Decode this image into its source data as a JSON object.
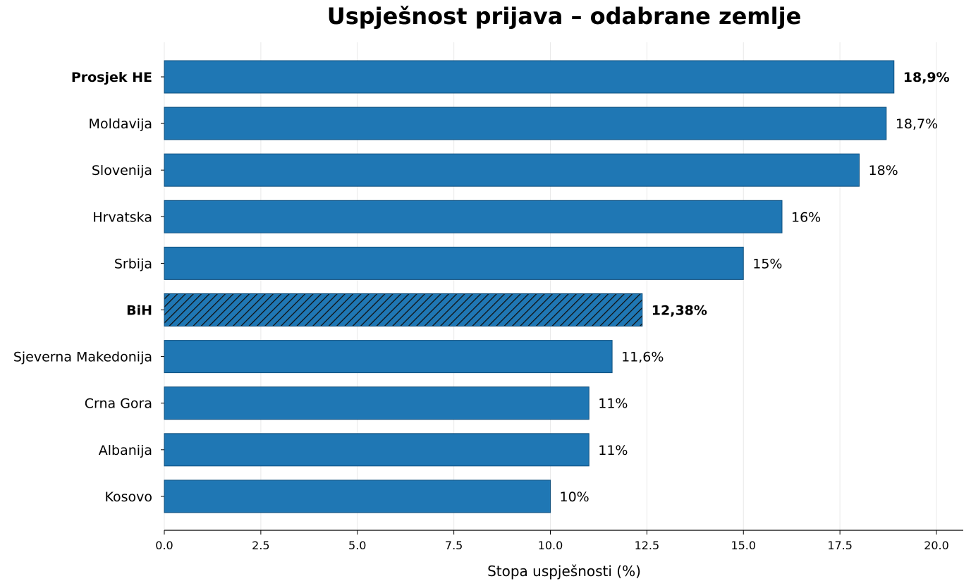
{
  "chart_data": {
    "type": "bar",
    "orientation": "horizontal",
    "title": "Uspješnost prijava – odabrane zemlje",
    "xlabel": "Stopa uspješnosti (%)",
    "ylabel": "",
    "xlim": [
      0,
      20.7
    ],
    "xticks": [
      "0.0",
      "2.5",
      "5.0",
      "7.5",
      "10.0",
      "12.5",
      "15.0",
      "17.5",
      "20.0"
    ],
    "grid": "vertical",
    "bar_color": "#1f77b4",
    "highlight_pattern": "hatched",
    "categories": [
      {
        "label": "Prosjek HE",
        "value": 18.9,
        "value_label": "18,9%",
        "bold": true,
        "hatched": false
      },
      {
        "label": "Moldavija",
        "value": 18.7,
        "value_label": "18,7%",
        "bold": false,
        "hatched": false
      },
      {
        "label": "Slovenija",
        "value": 18,
        "value_label": "18%",
        "bold": false,
        "hatched": false
      },
      {
        "label": "Hrvatska",
        "value": 16,
        "value_label": "16%",
        "bold": false,
        "hatched": false
      },
      {
        "label": "Srbija",
        "value": 15,
        "value_label": "15%",
        "bold": false,
        "hatched": false
      },
      {
        "label": "BiH",
        "value": 12.38,
        "value_label": "12,38%",
        "bold": true,
        "hatched": true
      },
      {
        "label": "Sjeverna Makedonija",
        "value": 11.6,
        "value_label": "11,6%",
        "bold": false,
        "hatched": false
      },
      {
        "label": "Crna Gora",
        "value": 11,
        "value_label": "11%",
        "bold": false,
        "hatched": false
      },
      {
        "label": "Albanija",
        "value": 11,
        "value_label": "11%",
        "bold": false,
        "hatched": false
      },
      {
        "label": "Kosovo",
        "value": 10,
        "value_label": "10%",
        "bold": false,
        "hatched": false
      }
    ]
  }
}
